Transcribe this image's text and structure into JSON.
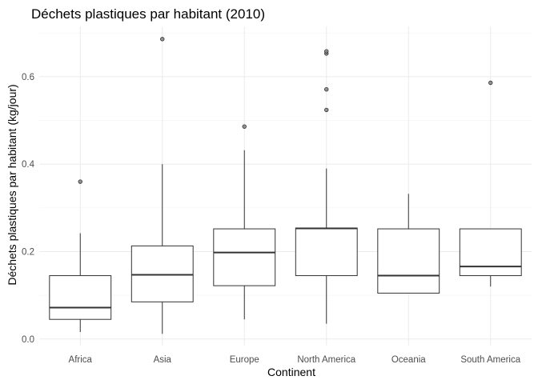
{
  "chart_data": {
    "type": "boxplot",
    "title": "Déchets plastiques par habitant (2010)",
    "xlabel": "Continent",
    "ylabel": "Déchets plastiques par habitant (kg/jour)",
    "ylim": [
      -0.015,
      0.715
    ],
    "yticks": [
      0.0,
      0.2,
      0.4,
      0.6
    ],
    "ytick_labels": [
      "0.0",
      "0.2",
      "0.4",
      "0.6"
    ],
    "grid": true,
    "categories": [
      "Africa",
      "Asia",
      "Europe",
      "North America",
      "Oceania",
      "South America"
    ],
    "boxes": [
      {
        "category": "Africa",
        "whisker_low": 0.016,
        "q1": 0.045,
        "median": 0.072,
        "q3": 0.145,
        "whisker_high": 0.242,
        "outliers": [
          0.36
        ]
      },
      {
        "category": "Asia",
        "whisker_low": 0.012,
        "q1": 0.085,
        "median": 0.147,
        "q3": 0.213,
        "whisker_high": 0.4,
        "outliers": [
          0.686
        ]
      },
      {
        "category": "Europe",
        "whisker_low": 0.045,
        "q1": 0.122,
        "median": 0.198,
        "q3": 0.252,
        "whisker_high": 0.432,
        "outliers": [
          0.486
        ]
      },
      {
        "category": "North America",
        "whisker_low": 0.035,
        "q1": 0.145,
        "median": 0.253,
        "q3": 0.254,
        "whisker_high": 0.39,
        "outliers": [
          0.524,
          0.571,
          0.653,
          0.658
        ]
      },
      {
        "category": "Oceania",
        "whisker_low": 0.105,
        "q1": 0.105,
        "median": 0.145,
        "q3": 0.252,
        "whisker_high": 0.332,
        "outliers": []
      },
      {
        "category": "South America",
        "whisker_low": 0.12,
        "q1": 0.145,
        "median": 0.166,
        "q3": 0.252,
        "whisker_high": 0.252,
        "outliers": [
          0.586
        ]
      }
    ]
  }
}
